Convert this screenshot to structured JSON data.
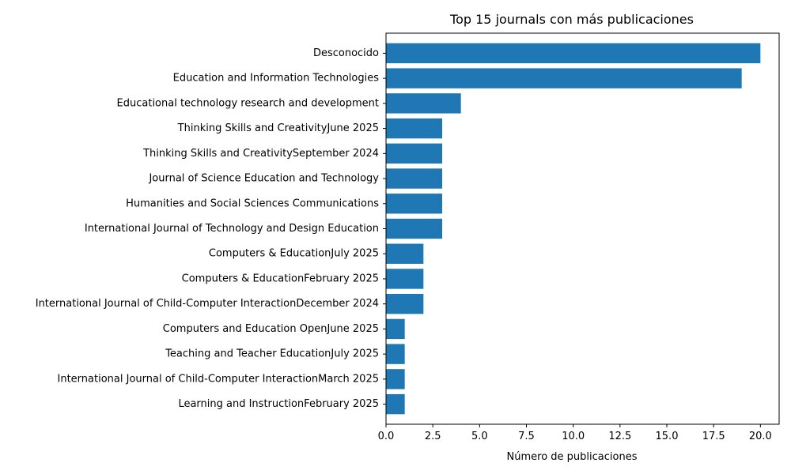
{
  "chart_data": {
    "type": "bar",
    "orientation": "horizontal",
    "title": "Top 15 journals con más publicaciones",
    "xlabel": "Número de publicaciones",
    "ylabel": "",
    "xlim": [
      0,
      21
    ],
    "xticks": [
      0,
      2.5,
      5,
      7.5,
      10,
      12.5,
      15,
      17.5,
      20
    ],
    "xtick_labels": [
      "0.0",
      "2.5",
      "5.0",
      "7.5",
      "10.0",
      "12.5",
      "15.0",
      "17.5",
      "20.0"
    ],
    "grid": false,
    "legend": "none",
    "bar_color": "#1f77b4",
    "categories": [
      "Desconocido",
      "Education and Information Technologies",
      "Educational technology research and development",
      "Thinking Skills and CreativityJune 2025",
      "Thinking Skills and CreativitySeptember 2024",
      "Journal of Science Education and Technology",
      "Humanities and Social Sciences Communications",
      "International Journal of Technology and Design Education",
      "Computers & EducationJuly 2025",
      "Computers & EducationFebruary 2025",
      "International Journal of Child-Computer InteractionDecember 2024",
      "Computers and Education OpenJune 2025",
      "Teaching and Teacher EducationJuly 2025",
      "International Journal of Child-Computer InteractionMarch 2025",
      "Learning and InstructionFebruary 2025"
    ],
    "values": [
      20,
      19,
      4,
      3,
      3,
      3,
      3,
      3,
      2,
      2,
      2,
      1,
      1,
      1,
      1
    ]
  }
}
